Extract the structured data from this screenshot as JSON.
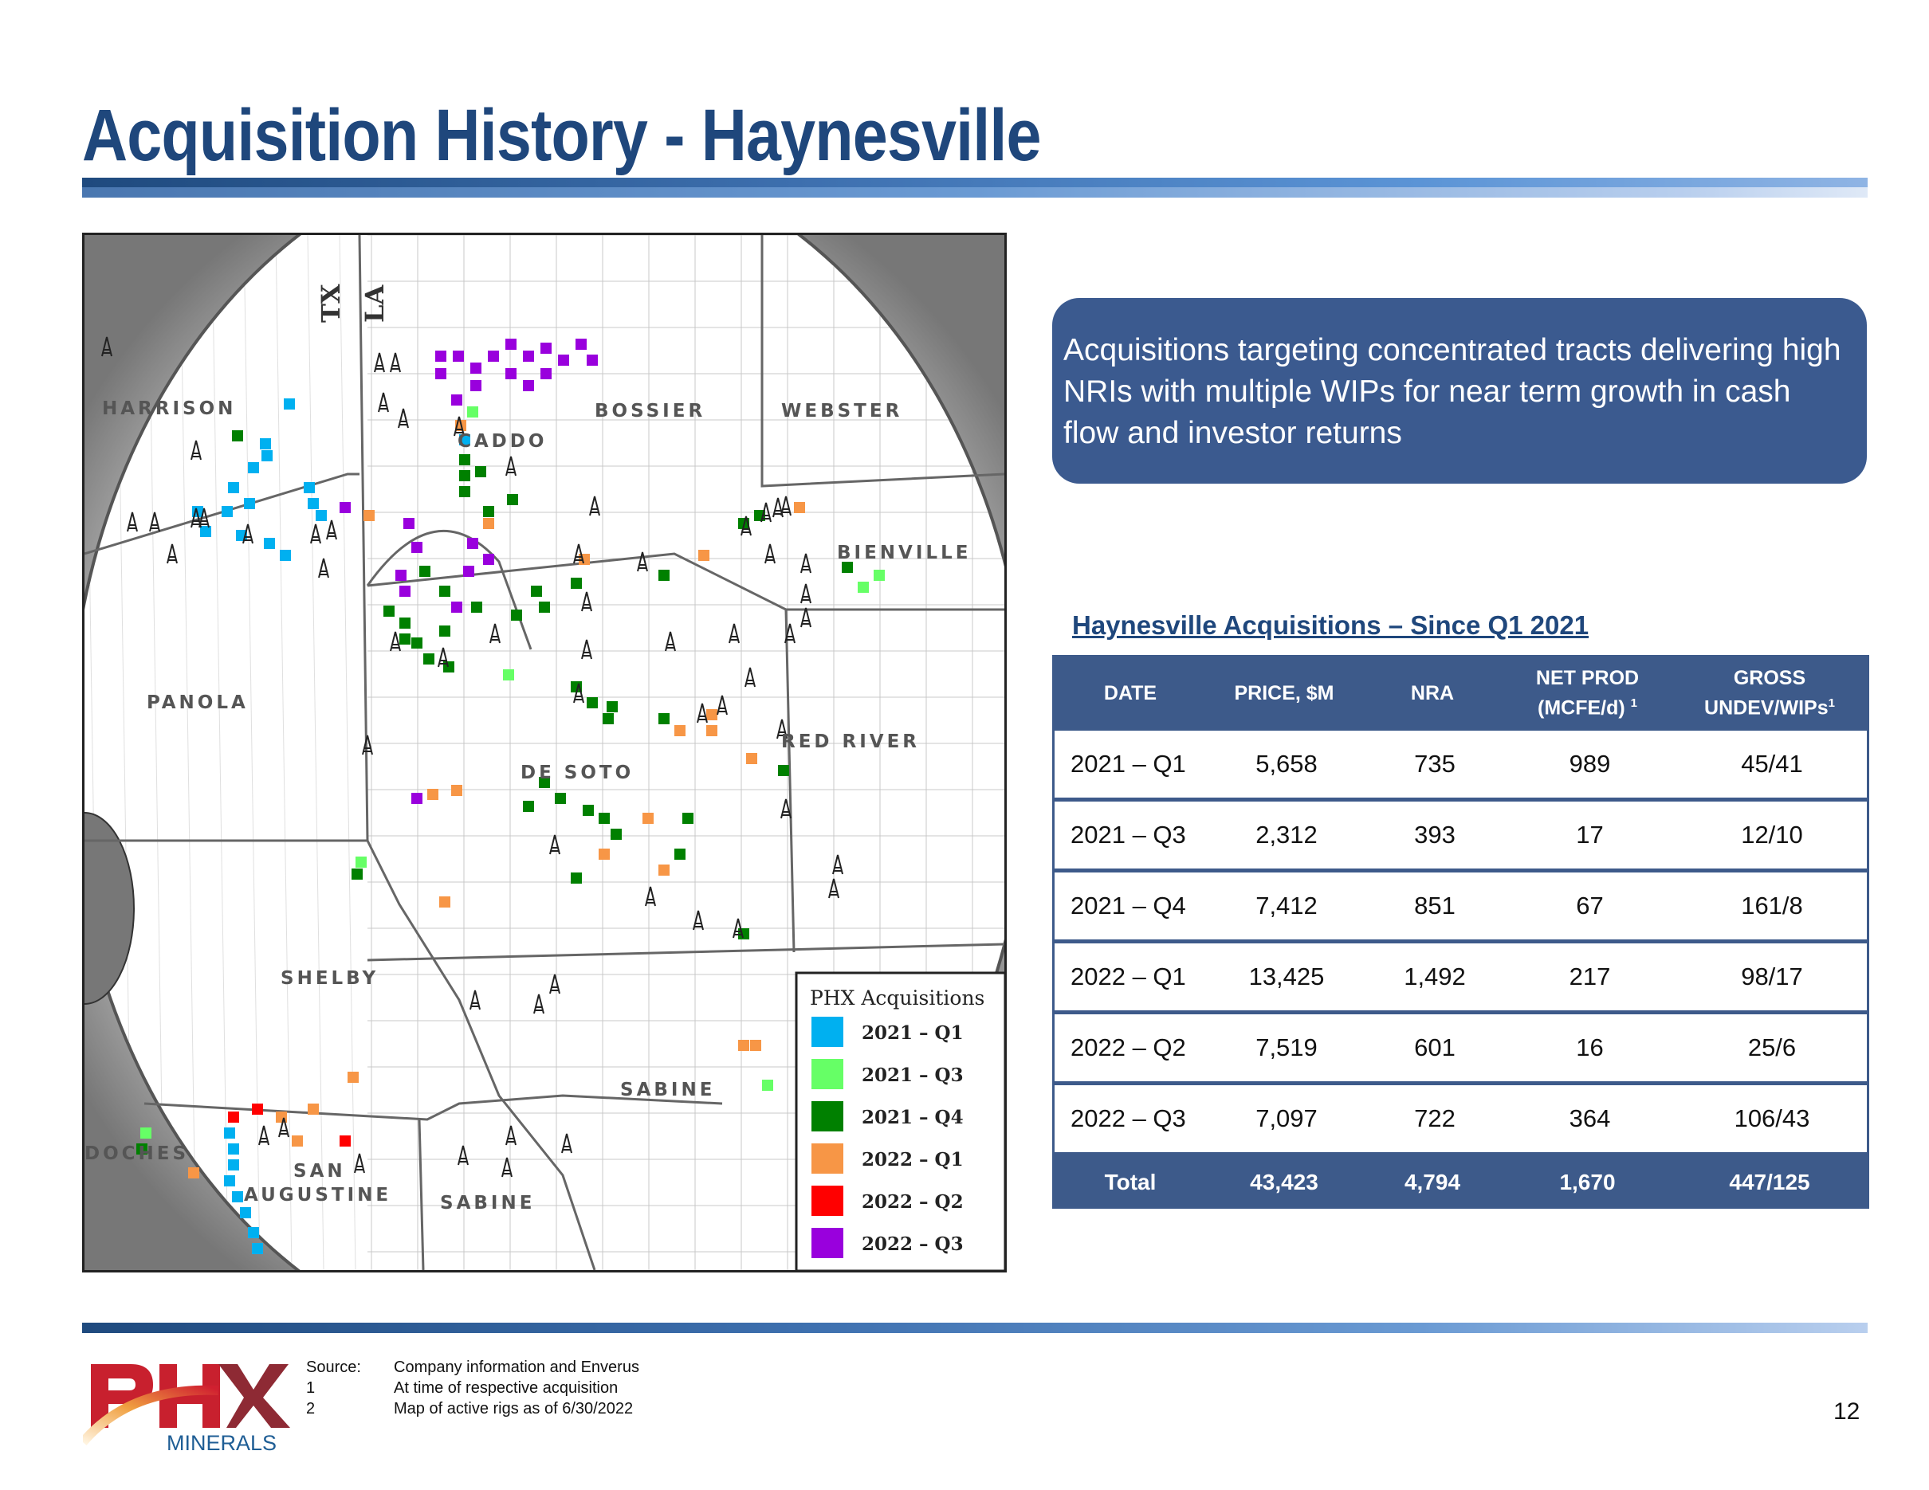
{
  "header": {
    "title": "Acquisition History - Haynesville"
  },
  "map": {
    "states": [
      "TX",
      "LA"
    ],
    "counties": {
      "harrison": "HARRISON",
      "panola": "PANOLA",
      "shelby": "SHELBY",
      "san_augustine_1": "SAN",
      "san_augustine_2": "AUGUSTINE",
      "nacogdoches": "DOCHES",
      "sabine_tx": "SABINE",
      "sabine_la": "SABINE",
      "desoto": "DE SOTO",
      "red_river": "RED RIVER",
      "bienville": "BIENVILLE",
      "bossier": "BOSSIER",
      "webster": "WEBSTER",
      "caddo": "CADDO"
    },
    "legend": {
      "title": "PHX Acquisitions",
      "items": [
        {
          "label": "2021 – Q1",
          "color": "#00b0f0"
        },
        {
          "label": "2021 – Q3",
          "color": "#66ff66"
        },
        {
          "label": "2021 – Q4",
          "color": "#008000"
        },
        {
          "label": "2022 – Q1",
          "color": "#f79646"
        },
        {
          "label": "2022 – Q2",
          "color": "#ff0000"
        },
        {
          "label": "2022 – Q3",
          "color": "#9900dd"
        }
      ]
    }
  },
  "callout": {
    "text": "Acquisitions targeting concentrated tracts delivering high NRIs with multiple WIPs for near term growth in cash flow and investor returns"
  },
  "table": {
    "heading": "Haynesville Acquisitions – Since Q1 2021",
    "columns": {
      "date": "DATE",
      "price": "PRICE, $M",
      "nra": "NRA",
      "netprod_1": "NET PROD",
      "netprod_2": "(MCFE/d)",
      "netprod_sup": "1",
      "gross_1": "GROSS",
      "gross_2": "UNDEV/WIPs",
      "gross_sup": "1"
    },
    "rows": [
      [
        "2021 – Q1",
        "5,658",
        "735",
        "989",
        "45/41"
      ],
      [
        "2021 – Q3",
        "2,312",
        "393",
        "17",
        "12/10"
      ],
      [
        "2021 – Q4",
        "7,412",
        "851",
        "67",
        "161/8"
      ],
      [
        "2022 – Q1",
        "13,425",
        "1,492",
        "217",
        "98/17"
      ],
      [
        "2022 – Q2",
        "7,519",
        "601",
        "16",
        "25/6"
      ],
      [
        "2022 – Q3",
        "7,097",
        "722",
        "364",
        "106/43"
      ]
    ],
    "total": [
      "Total",
      "43,423",
      "4,794",
      "1,670",
      "447/125"
    ]
  },
  "footer": {
    "labels": [
      "Source:",
      "1",
      "2"
    ],
    "notes": [
      "Company information and Enverus",
      "At time of respective acquisition",
      "Map of active rigs as of 6/30/2022"
    ],
    "page_number": "12",
    "logo_text": "PHX MINERALS"
  }
}
